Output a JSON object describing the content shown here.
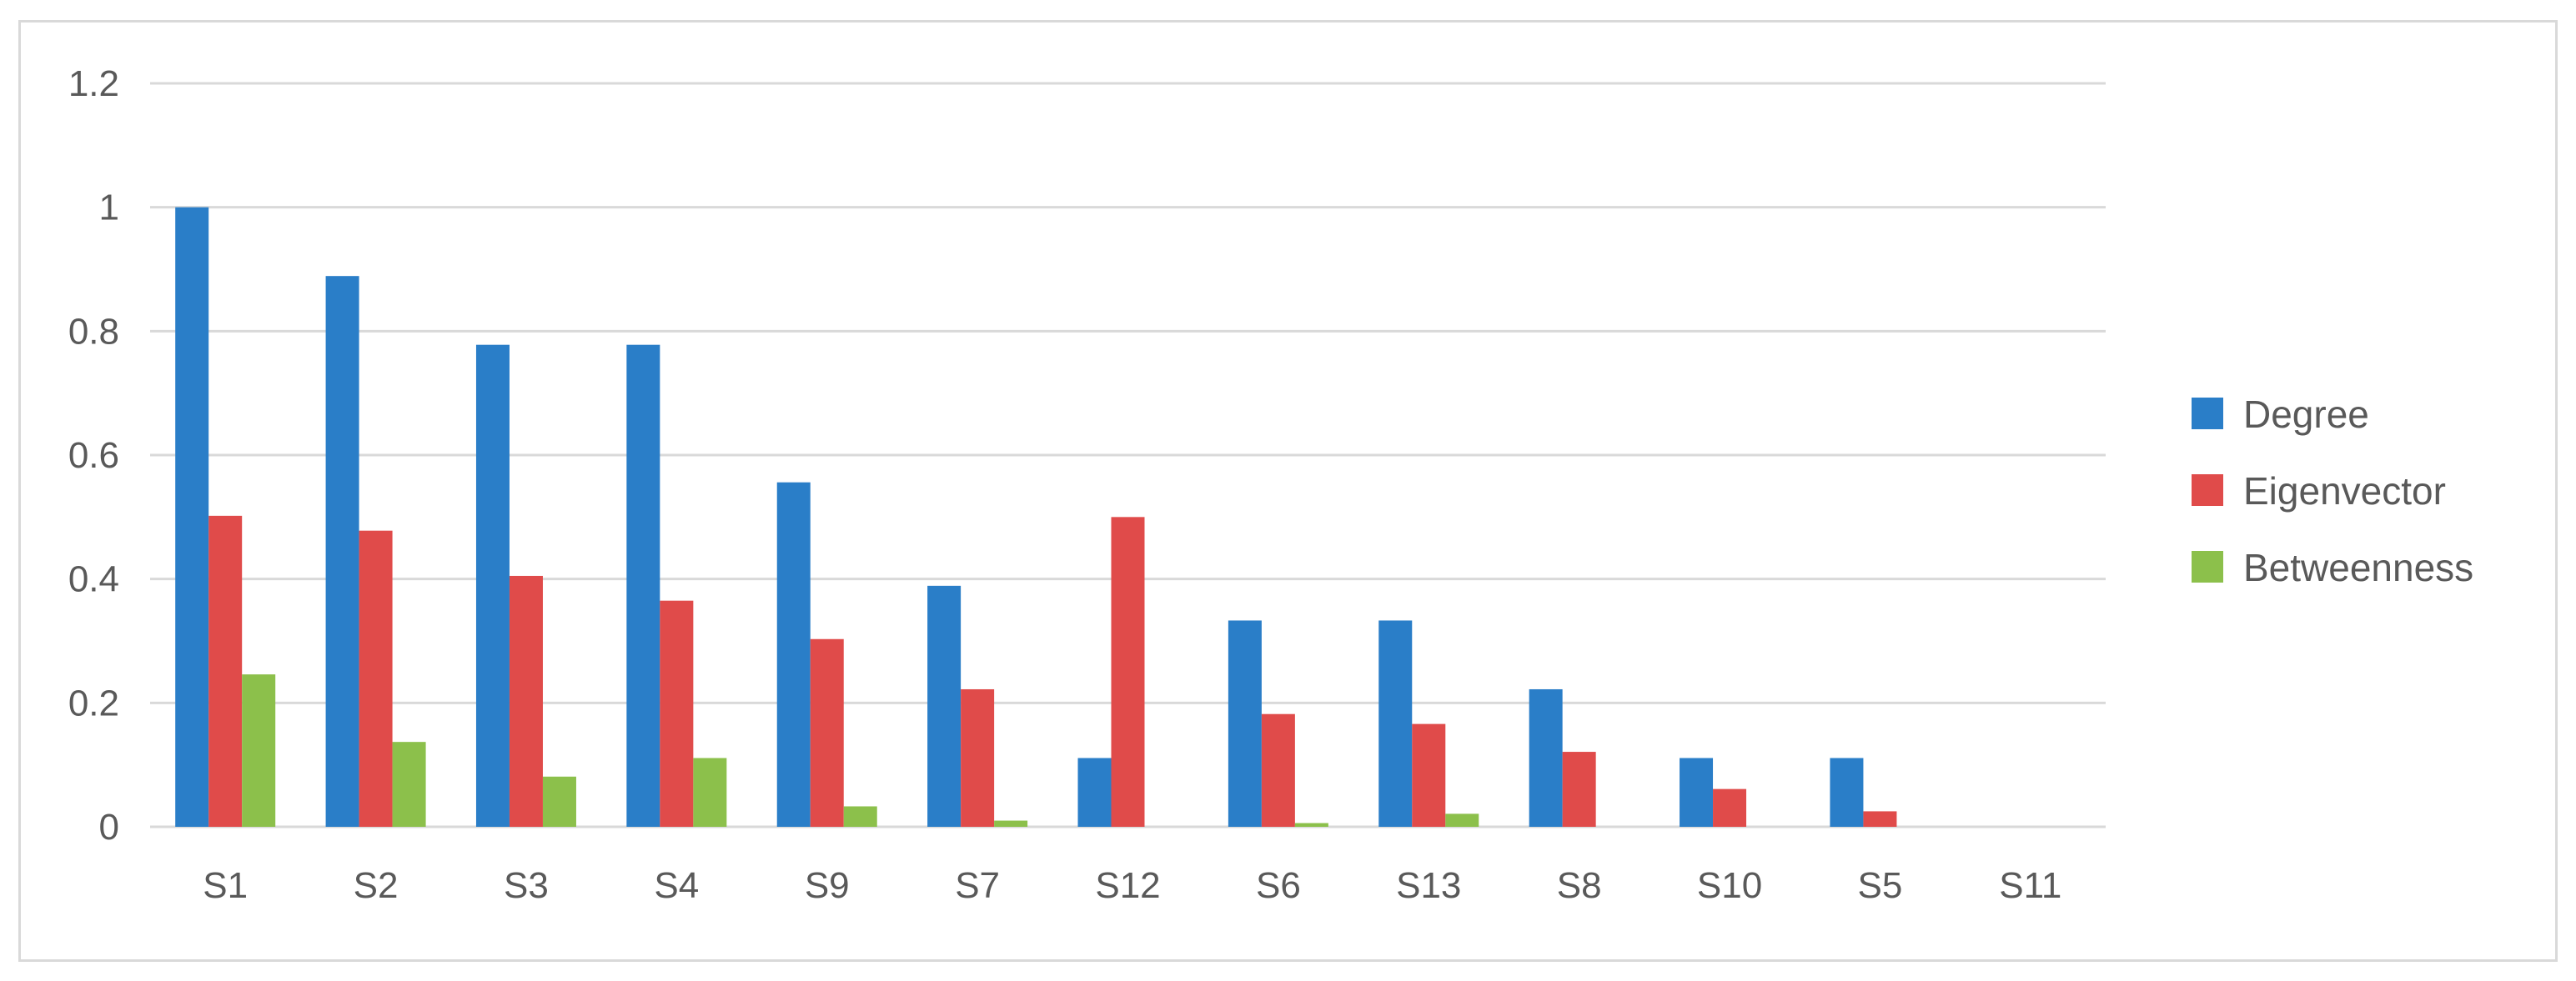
{
  "chart_data": {
    "type": "bar",
    "categories": [
      "S1",
      "S2",
      "S3",
      "S4",
      "S9",
      "S7",
      "S12",
      "S6",
      "S13",
      "S8",
      "S10",
      "S5",
      "S11"
    ],
    "series": [
      {
        "name": "Degree",
        "color": "#2a7ec8",
        "values": [
          1.0,
          0.889,
          0.778,
          0.778,
          0.556,
          0.389,
          0.111,
          0.333,
          0.333,
          0.222,
          0.111,
          0.111,
          0.0
        ]
      },
      {
        "name": "Eigenvector",
        "color": "#e04b4a",
        "values": [
          0.502,
          0.478,
          0.405,
          0.365,
          0.303,
          0.222,
          0.5,
          0.182,
          0.166,
          0.121,
          0.061,
          0.025,
          0.0
        ]
      },
      {
        "name": "Betweenness",
        "color": "#8cc04b",
        "values": [
          0.246,
          0.137,
          0.081,
          0.111,
          0.033,
          0.01,
          0.0,
          0.006,
          0.021,
          0.0,
          0.0,
          0.0,
          0.0
        ]
      }
    ],
    "ylim": [
      0,
      1.2
    ],
    "yticks": [
      "0",
      "0.2",
      "0.4",
      "0.6",
      "0.8",
      "1",
      "1.2"
    ],
    "ytick_values": [
      0,
      0.2,
      0.4,
      0.6,
      0.8,
      1.0,
      1.2
    ],
    "grid": true,
    "legend": "right",
    "title": "",
    "xlabel": "",
    "ylabel": ""
  }
}
